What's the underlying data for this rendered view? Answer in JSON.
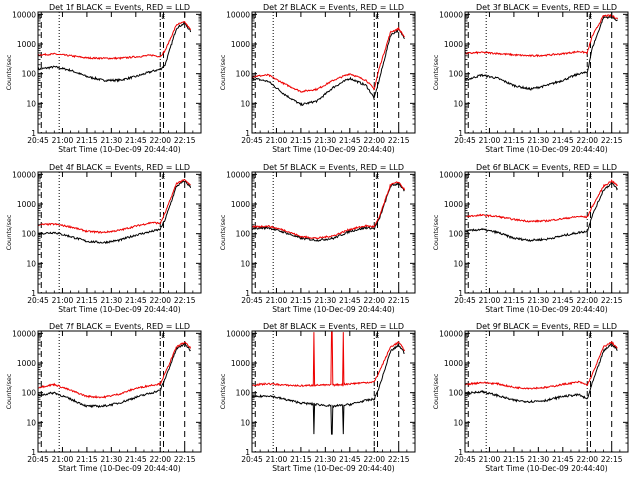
{
  "figure": {
    "title_template": "Det {det} BLACK = Events, RED = LLD",
    "xlabel": "Start Time (10-Dec-09 20:44:40)",
    "ylabel": "Counts/sec",
    "x_ticks": [
      "20:45",
      "21:00",
      "21:15",
      "21:30",
      "21:45",
      "22:00",
      "22:15"
    ],
    "x_tick_minutes": [
      0,
      15,
      30,
      45,
      60,
      75,
      90
    ],
    "x_range_minutes": [
      0,
      100
    ],
    "y_ticks": [
      "1",
      "10",
      "100",
      "1000",
      "10000"
    ],
    "y_range": [
      1,
      12000
    ],
    "y_scale": "log",
    "series_colors": {
      "events": "#000000",
      "lld": "#ee0000"
    },
    "marker_labels": {
      "saa_start": "S",
      "saa_end": "E",
      "night": "N",
      "day": "D"
    }
  },
  "chart_data": [
    {
      "type": "line",
      "panel": "1f",
      "title": "Det 1f BLACK = Events, RED = LLD",
      "xlabel": "Start Time (10-Dec-09 20:44:40)",
      "ylabel": "Counts/sec",
      "x_minutes": [
        0,
        10,
        20,
        30,
        40,
        50,
        60,
        70,
        75,
        78,
        85,
        90,
        94
      ],
      "series": [
        {
          "name": "Events",
          "values": [
            140,
            170,
            130,
            80,
            60,
            60,
            80,
            120,
            140,
            200,
            3500,
            5000,
            2500
          ]
        },
        {
          "name": "LLD",
          "values": [
            430,
            460,
            400,
            340,
            330,
            330,
            370,
            420,
            380,
            600,
            4500,
            5500,
            2800
          ]
        }
      ],
      "markers_minutes": {
        "dashed": [
          2,
          77,
          90
        ],
        "dotted": [
          13
        ],
        "dashdot": [
          75
        ]
      }
    },
    {
      "type": "line",
      "panel": "2f",
      "title": "Det 2f BLACK = Events, RED = LLD",
      "xlabel": "Start Time (10-Dec-09 20:44:40)",
      "ylabel": "Counts/sec",
      "x_minutes": [
        0,
        10,
        20,
        30,
        40,
        50,
        60,
        70,
        75,
        78,
        85,
        90,
        94
      ],
      "series": [
        {
          "name": "Events",
          "values": [
            70,
            55,
            20,
            9,
            12,
            35,
            70,
            40,
            15,
            60,
            2000,
            3000,
            1500
          ]
        },
        {
          "name": "LLD",
          "values": [
            80,
            90,
            45,
            25,
            30,
            60,
            100,
            60,
            30,
            150,
            2500,
            3300,
            1600
          ]
        }
      ],
      "markers_minutes": {
        "dashed": [
          2,
          77,
          90
        ],
        "dotted": [
          13
        ],
        "dashdot": [
          75
        ]
      }
    },
    {
      "type": "line",
      "panel": "3f",
      "title": "Det 3f BLACK = Events, RED = LLD",
      "xlabel": "Start Time (10-Dec-09 20:44:40)",
      "ylabel": "Counts/sec",
      "x_minutes": [
        0,
        10,
        20,
        30,
        40,
        50,
        60,
        70,
        75,
        78,
        85,
        90,
        94
      ],
      "series": [
        {
          "name": "Events",
          "values": [
            60,
            90,
            70,
            40,
            30,
            40,
            60,
            100,
            110,
            700,
            8000,
            8000,
            6000
          ]
        },
        {
          "name": "LLD",
          "values": [
            480,
            520,
            480,
            430,
            400,
            420,
            470,
            560,
            500,
            1800,
            9000,
            9000,
            7000
          ]
        }
      ],
      "markers_minutes": {
        "dashed": [
          2,
          77,
          90
        ],
        "dotted": [
          13
        ],
        "dashdot": [
          75
        ]
      }
    },
    {
      "type": "line",
      "panel": "4f",
      "title": "Det 4f BLACK = Events, RED = LLD",
      "xlabel": "Start Time (10-Dec-09 20:44:40)",
      "ylabel": "Counts/sec",
      "x_minutes": [
        0,
        10,
        20,
        30,
        40,
        50,
        60,
        70,
        75,
        78,
        85,
        90,
        94
      ],
      "series": [
        {
          "name": "Events",
          "values": [
            100,
            110,
            80,
            55,
            50,
            60,
            90,
            120,
            140,
            300,
            4000,
            6000,
            3500
          ]
        },
        {
          "name": "LLD",
          "values": [
            200,
            210,
            170,
            120,
            110,
            130,
            180,
            240,
            220,
            500,
            5000,
            6500,
            4000
          ]
        }
      ],
      "markers_minutes": {
        "dashed": [
          2,
          77,
          90
        ],
        "dotted": [
          13
        ],
        "dashdot": [
          75
        ]
      }
    },
    {
      "type": "line",
      "panel": "5f",
      "title": "Det 5f BLACK = Events, RED = LLD",
      "xlabel": "Start Time (10-Dec-09 20:44:40)",
      "ylabel": "Counts/sec",
      "x_minutes": [
        0,
        10,
        20,
        30,
        40,
        50,
        60,
        70,
        75,
        78,
        85,
        90,
        94
      ],
      "series": [
        {
          "name": "Events",
          "values": [
            150,
            160,
            110,
            70,
            60,
            70,
            120,
            160,
            150,
            300,
            4000,
            5000,
            2500
          ]
        },
        {
          "name": "LLD",
          "values": [
            170,
            180,
            130,
            80,
            70,
            85,
            140,
            185,
            170,
            350,
            4500,
            5500,
            2800
          ]
        }
      ],
      "markers_minutes": {
        "dashed": [
          2,
          77,
          90
        ],
        "dotted": [
          13
        ],
        "dashdot": [
          75
        ]
      }
    },
    {
      "type": "line",
      "panel": "6f",
      "title": "Det 6f BLACK = Events, RED = LLD",
      "xlabel": "Start Time (10-Dec-09 20:44:40)",
      "ylabel": "Counts/sec",
      "x_minutes": [
        0,
        10,
        20,
        30,
        40,
        50,
        60,
        70,
        75,
        78,
        85,
        90,
        94
      ],
      "series": [
        {
          "name": "Events",
          "values": [
            120,
            140,
            110,
            70,
            60,
            65,
            85,
            110,
            120,
            400,
            3000,
            5000,
            3000
          ]
        },
        {
          "name": "LLD",
          "values": [
            380,
            420,
            380,
            300,
            260,
            270,
            320,
            380,
            360,
            800,
            4000,
            6000,
            4000
          ]
        }
      ],
      "markers_minutes": {
        "dashed": [
          2,
          77,
          90
        ],
        "dotted": [
          13
        ],
        "dashdot": [
          75
        ]
      }
    },
    {
      "type": "line",
      "panel": "7f",
      "title": "Det 7f BLACK = Events, RED = LLD",
      "xlabel": "Start Time (10-Dec-09 20:44:40)",
      "ylabel": "Counts/sec",
      "x_minutes": [
        0,
        10,
        20,
        30,
        40,
        50,
        60,
        70,
        75,
        78,
        85,
        90,
        94
      ],
      "series": [
        {
          "name": "Events",
          "values": [
            80,
            100,
            60,
            35,
            35,
            45,
            70,
            100,
            120,
            300,
            3000,
            4500,
            2500
          ]
        },
        {
          "name": "LLD",
          "values": [
            150,
            190,
            120,
            75,
            70,
            90,
            140,
            180,
            200,
            450,
            3500,
            5000,
            3000
          ]
        }
      ],
      "markers_minutes": {
        "dashed": [
          2,
          77,
          90
        ],
        "dotted": [
          13
        ],
        "dashdot": [
          75
        ]
      }
    },
    {
      "type": "line",
      "panel": "8f",
      "title": "Det 8f BLACK = Events, RED = LLD",
      "xlabel": "Start Time (10-Dec-09 20:44:40)",
      "ylabel": "Counts/sec",
      "x_minutes": [
        0,
        10,
        20,
        30,
        40,
        50,
        60,
        70,
        75,
        78,
        85,
        90,
        94
      ],
      "series": [
        {
          "name": "Events",
          "values": [
            70,
            80,
            60,
            45,
            40,
            35,
            40,
            55,
            60,
            150,
            2500,
            4000,
            2000
          ]
        },
        {
          "name": "LLD",
          "values": [
            180,
            200,
            180,
            170,
            180,
            180,
            200,
            220,
            230,
            500,
            3500,
            5000,
            2500
          ]
        }
      ],
      "spikes_minutes": [
        38,
        49,
        56
      ],
      "markers_minutes": {
        "dashed": [
          2,
          77,
          90
        ],
        "dotted": [
          13
        ],
        "dashdot": [
          75
        ]
      }
    },
    {
      "type": "line",
      "panel": "9f",
      "title": "Det 9f BLACK = Events, RED = LLD",
      "xlabel": "Start Time (10-Dec-09 20:44:40)",
      "ylabel": "Counts/sec",
      "x_minutes": [
        0,
        10,
        20,
        30,
        40,
        50,
        60,
        70,
        75,
        78,
        85,
        90,
        94
      ],
      "series": [
        {
          "name": "Events",
          "values": [
            90,
            110,
            80,
            55,
            50,
            55,
            75,
            85,
            60,
            200,
            2500,
            4500,
            2500
          ]
        },
        {
          "name": "LLD",
          "values": [
            190,
            220,
            200,
            150,
            140,
            150,
            190,
            230,
            180,
            400,
            3500,
            5000,
            3000
          ]
        }
      ],
      "markers_minutes": {
        "dashed": [
          2,
          77,
          90
        ],
        "dotted": [
          13
        ],
        "dashdot": [
          75
        ]
      }
    }
  ]
}
